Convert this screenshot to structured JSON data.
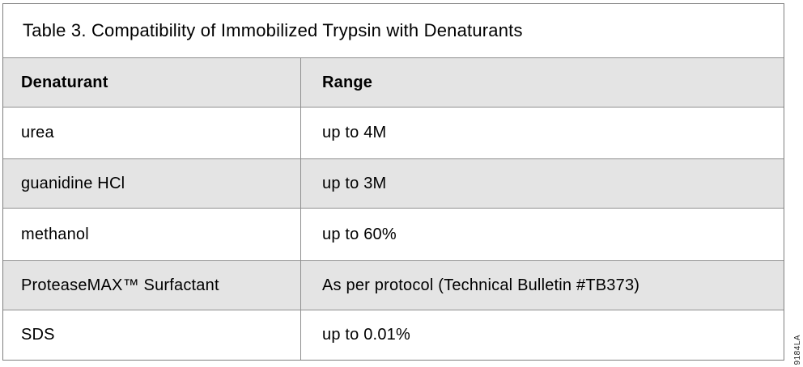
{
  "table": {
    "title": "Table 3. Compatibility of Immobilized Trypsin with Denaturants",
    "columns": [
      "Denaturant",
      "Range"
    ],
    "rows": [
      {
        "denaturant": "urea",
        "range": "up to 4M"
      },
      {
        "denaturant": "guanidine HCl",
        "range": "up to 3M"
      },
      {
        "denaturant": "methanol",
        "range": "up to 60%"
      },
      {
        "denaturant": "ProteaseMAX™ Surfactant",
        "range": "As per protocol (Technical Bulletin #TB373)"
      },
      {
        "denaturant": "SDS",
        "range": "up to 0.01%"
      }
    ]
  },
  "figure_code": "9184LA",
  "colors": {
    "stripe_bg": "#e4e4e4",
    "border": "#8f8f8f",
    "outer_border": "#7f7f7f",
    "text": "#000000"
  }
}
